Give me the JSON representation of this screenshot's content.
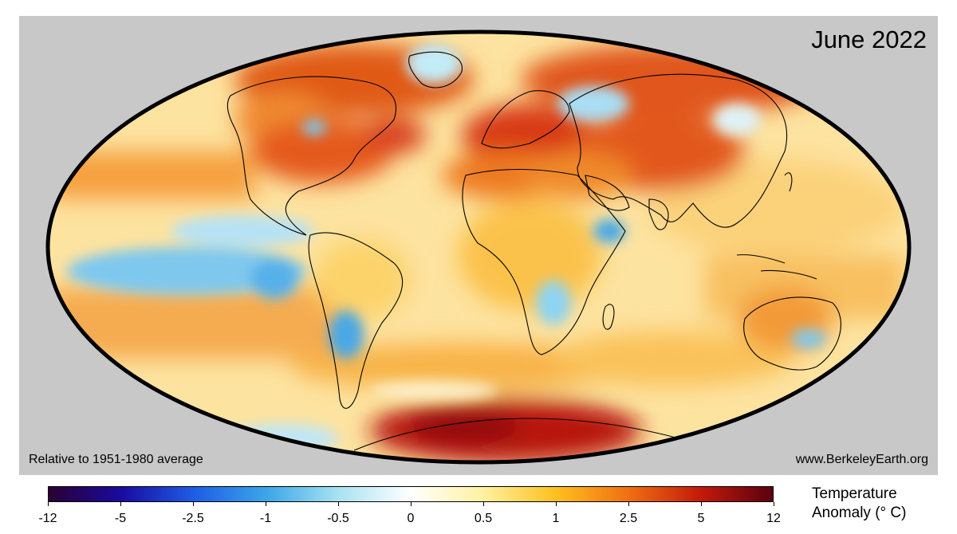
{
  "map": {
    "title": "June 2022",
    "note_left": "Relative to 1951-1980 average",
    "note_right": "www.BerkeleyEarth.org",
    "projection": "mollweide",
    "background_color": "#c8c8c8"
  },
  "legend": {
    "title_line1": "Temperature",
    "title_line2": "Anomaly (° C)",
    "ticks": [
      "-12",
      "-5",
      "-2.5",
      "-1",
      "-0.5",
      "0",
      "0.5",
      "1",
      "2.5",
      "5",
      "12"
    ],
    "colors": [
      "#2a0033",
      "#1a0aa0",
      "#1e5ce6",
      "#3aa6e8",
      "#a8e2f2",
      "#ffffff",
      "#fff1a0",
      "#ffc020",
      "#f07010",
      "#c41a0a",
      "#5a0010"
    ]
  }
}
